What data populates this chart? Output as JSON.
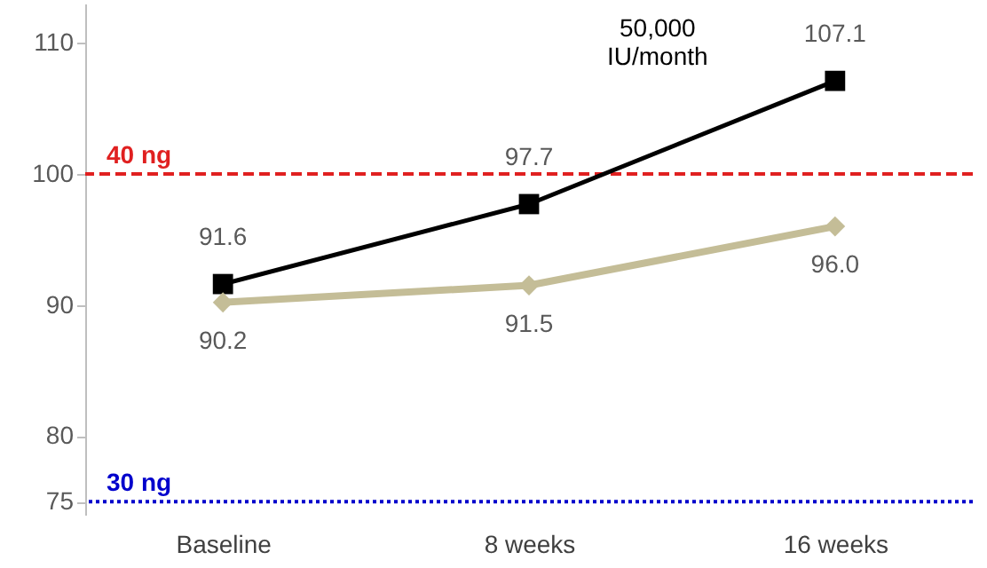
{
  "chart_data": {
    "type": "line",
    "categories": [
      "Baseline",
      "8 weeks",
      "16 weeks"
    ],
    "series": [
      {
        "name": "50,000 IU/month",
        "color": "#000000",
        "values": [
          91.6,
          97.7,
          107.1
        ],
        "value_labels": [
          "91.6",
          "97.7",
          "107.1"
        ],
        "marker": "square"
      },
      {
        "color": "#c4bd97",
        "values": [
          90.2,
          91.5,
          96.0
        ],
        "value_labels": [
          "90.2",
          "91.5",
          "96.0"
        ],
        "marker": "diamond"
      }
    ],
    "ylim": [
      74,
      113
    ],
    "yticks": [
      75,
      80,
      90,
      100,
      110
    ],
    "grid": false,
    "line_style": "solid",
    "ref_lines": [
      {
        "axis": "y",
        "value": 100,
        "label": "40 ng",
        "color": "#e02020",
        "line_style": "dashed"
      },
      {
        "axis": "y",
        "value": 75,
        "label": "30 ng",
        "color": "#0000cc",
        "line_style": "dotted"
      }
    ]
  }
}
